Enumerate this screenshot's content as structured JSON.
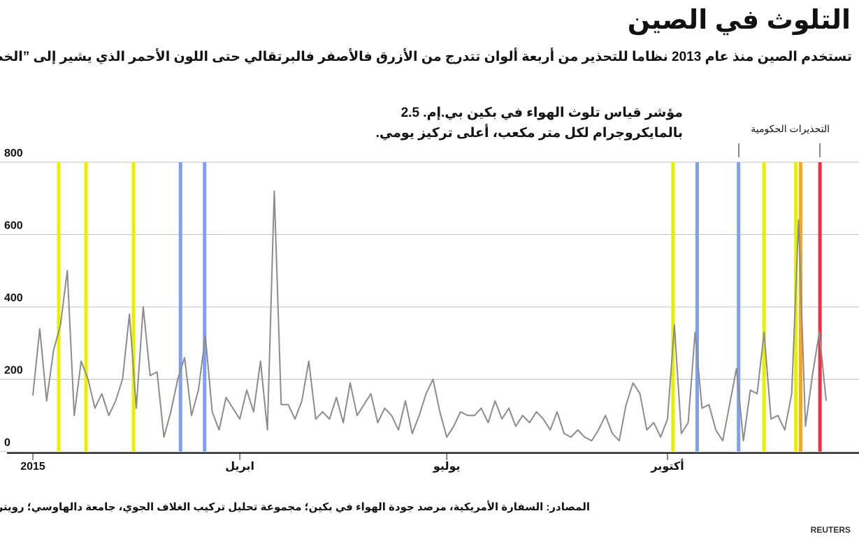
{
  "chart_data": {
    "type": "line",
    "title": "التلوث في الصين",
    "subtitle": "تستخدم الصين منذ عام 2013 نظاما للتحذير من أربعة ألوان تتدرج من الأزرق فالأصفر فالبرتقالي حتى اللون الأحمر الذي يشير إلى ”الخطر",
    "annotation": [
      "مؤشر قياس تلوث الهواء في بكين بي.إم. 2.5",
      "بالمايكروجرام لكل متر مكعب، أعلى تركيز يومي."
    ],
    "alerts_label": "التحذيرات الحكومية",
    "source": "المصادر: السفارة الأمريكية، مرصد جودة الهواء في بكين؛ مجموعة تحليل تركيب الغلاف الجوي، جامعة دالهاوسي؛ رويترز.",
    "brand": "REUTERS",
    "categories": [
      "2015",
      null,
      null,
      null,
      null,
      null,
      null,
      null,
      null,
      null,
      null,
      null,
      null,
      null,
      null,
      null,
      null,
      null,
      null,
      null,
      null,
      null,
      null,
      null,
      null,
      null,
      null,
      null,
      null,
      null,
      "ابريل",
      null,
      null,
      null,
      null,
      null,
      null,
      null,
      null,
      null,
      null,
      null,
      null,
      null,
      null,
      null,
      null,
      null,
      null,
      null,
      null,
      null,
      null,
      null,
      null,
      null,
      null,
      null,
      null,
      null,
      "يوليو",
      null,
      null,
      null,
      null,
      null,
      null,
      null,
      null,
      null,
      null,
      null,
      null,
      null,
      null,
      null,
      null,
      null,
      null,
      null,
      null,
      null,
      null,
      null,
      null,
      null,
      null,
      null,
      null,
      null,
      null,
      null,
      "أكتوبر",
      null,
      null,
      null,
      null,
      null,
      null,
      null,
      null,
      null,
      null,
      null,
      null,
      null,
      null,
      null,
      null,
      null,
      null,
      null,
      null,
      null,
      null,
      null
    ],
    "series": [
      {
        "color": "#8c8c8c",
        "values": [
          155,
          340,
          140,
          280,
          350,
          500,
          100,
          250,
          200,
          120,
          160,
          100,
          140,
          200,
          380,
          120,
          400,
          210,
          220,
          40,
          110,
          200,
          260,
          100,
          170,
          320,
          110,
          60,
          150,
          120,
          90,
          170,
          110,
          250,
          60,
          720,
          130,
          130,
          90,
          140,
          250,
          90,
          110,
          90,
          150,
          80,
          190,
          100,
          130,
          160,
          80,
          120,
          100,
          60,
          140,
          50,
          100,
          160,
          200,
          110,
          40,
          70,
          110,
          100,
          100,
          120,
          80,
          140,
          90,
          120,
          70,
          100,
          80,
          110,
          90,
          60,
          110,
          50,
          40,
          60,
          40,
          30,
          60,
          100,
          50,
          30,
          130,
          190,
          160,
          60,
          80,
          40,
          90,
          350,
          50,
          80,
          330,
          120,
          130,
          60,
          30,
          130,
          230,
          30,
          170,
          160,
          330,
          90,
          100,
          60,
          160,
          640,
          70,
          210,
          330,
          140
        ]
      }
    ],
    "alerts": [
      {
        "x": 3.75,
        "color": "#e8f000"
      },
      {
        "x": 7.7,
        "color": "#e8f000"
      },
      {
        "x": 14.6,
        "color": "#e8f000"
      },
      {
        "x": 21.4,
        "color": "#7fa0f0"
      },
      {
        "x": 24.9,
        "color": "#7fa0f0"
      },
      {
        "x": 92.8,
        "color": "#e8f000"
      },
      {
        "x": 96.3,
        "color": "#7fa0f0"
      },
      {
        "x": 102.3,
        "color": "#7fa0f0"
      },
      {
        "x": 106,
        "color": "#e8f000"
      },
      {
        "x": 110.6,
        "color": "#e8f000"
      },
      {
        "x": 111.3,
        "color": "#f5a623"
      },
      {
        "x": 114.1,
        "color": "#f03040"
      }
    ],
    "ylim": [
      0,
      800
    ],
    "yticks": [
      0,
      200,
      400,
      600,
      800
    ],
    "grid": true
  }
}
